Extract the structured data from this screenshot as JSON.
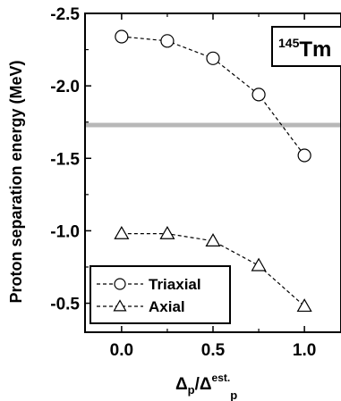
{
  "chart_data": {
    "type": "line",
    "x": [
      0.0,
      0.25,
      0.5,
      0.75,
      1.0
    ],
    "series": [
      {
        "name": "Triaxial",
        "marker": "circle",
        "line_style": "dashed",
        "values": [
          -2.34,
          -2.31,
          -2.19,
          -1.94,
          -1.52
        ]
      },
      {
        "name": "Axial",
        "marker": "triangle",
        "line_style": "dashed",
        "values": [
          -0.98,
          -0.98,
          -0.93,
          -0.76,
          -0.48
        ]
      }
    ],
    "reference_line": {
      "y": -1.73,
      "color": "#b8b8b8"
    },
    "xlabel": {
      "base": "Δ",
      "sub": "p",
      "slash": "/Δ",
      "sup": "est.",
      "sub2": "p"
    },
    "ylabel": "Proton separation energy (MeV)",
    "xlim": [
      -0.2,
      1.2
    ],
    "ylim": [
      -2.5,
      -0.3
    ],
    "y_inverted": true,
    "x_ticks": [
      0.0,
      0.5,
      1.0
    ],
    "x_tick_labels": [
      "0.0",
      "0.5",
      "1.0"
    ],
    "y_ticks": [
      -2.5,
      -2.0,
      -1.5,
      -1.0,
      -0.5
    ],
    "y_tick_labels": [
      "-2.5",
      "-2.0",
      "-1.5",
      "-1.0",
      "-0.5"
    ],
    "annotation": {
      "sup": "145",
      "text": "Tm"
    },
    "legend_position": "bottom-left",
    "grid": false
  }
}
